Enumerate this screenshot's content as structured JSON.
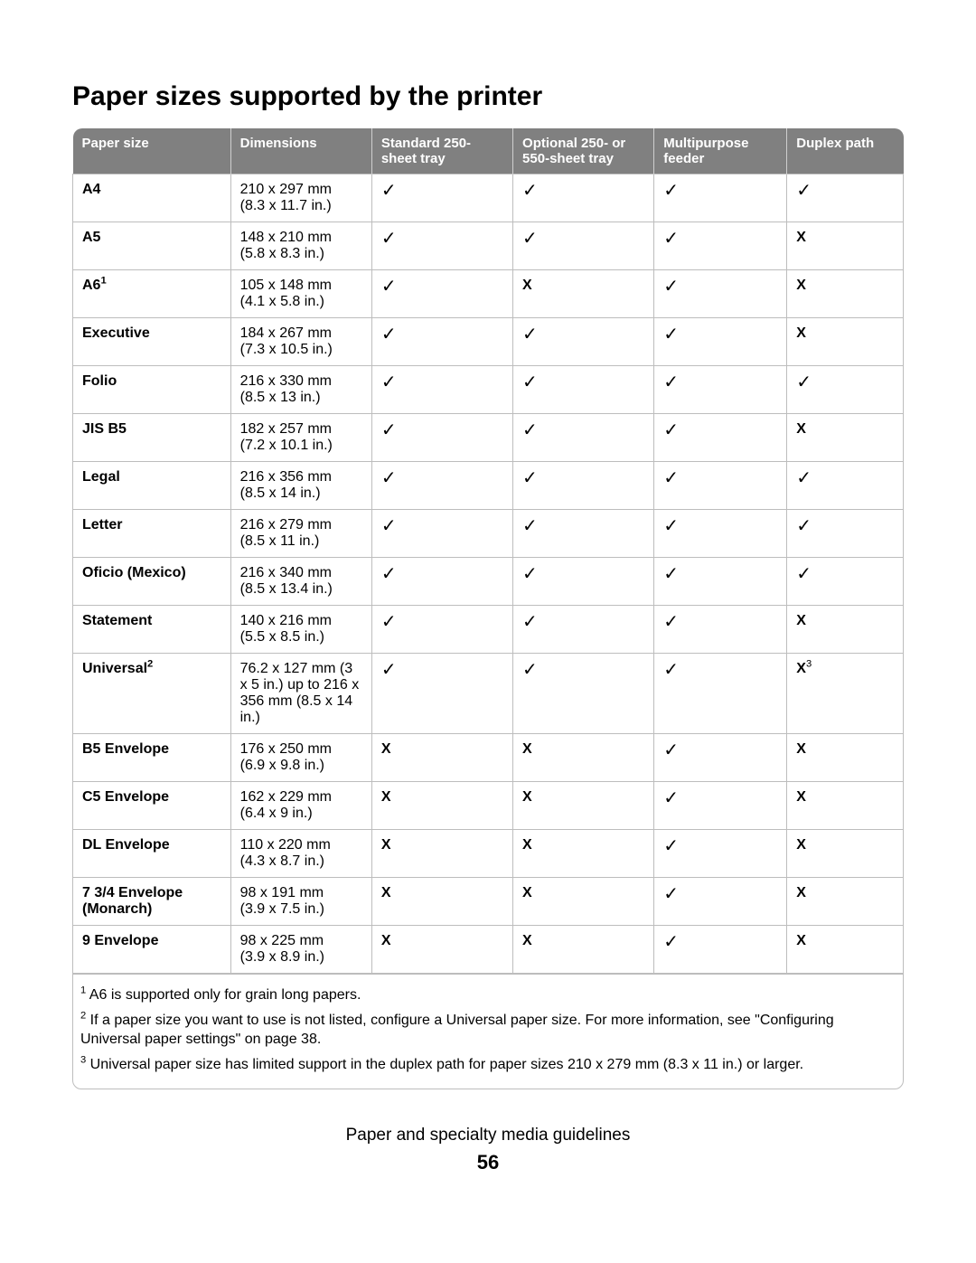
{
  "title": "Paper sizes supported by the printer",
  "columns": {
    "c1": "Paper size",
    "c2": "Dimensions",
    "c3": "Standard 250-sheet tray",
    "c4": "Optional 250- or 550-sheet tray",
    "c5": "Multipurpose feeder",
    "c6": "Duplex path"
  },
  "marks": {
    "yes": "✓",
    "no": "X"
  },
  "rows": [
    {
      "name": "A4",
      "sup": "",
      "mm": "210 x 297 mm",
      "in": "(8.3 x 11.7 in.)",
      "c3": "yes",
      "c4": "yes",
      "c5": "yes",
      "c6": "yes",
      "c6sup": ""
    },
    {
      "name": "A5",
      "sup": "",
      "mm": "148 x 210 mm",
      "in": "(5.8 x 8.3 in.)",
      "c3": "yes",
      "c4": "yes",
      "c5": "yes",
      "c6": "no",
      "c6sup": ""
    },
    {
      "name": "A6",
      "sup": "1",
      "mm": "105 x 148 mm",
      "in": "(4.1 x 5.8 in.)",
      "c3": "yes",
      "c4": "no",
      "c5": "yes",
      "c6": "no",
      "c6sup": ""
    },
    {
      "name": "Executive",
      "sup": "",
      "mm": "184 x 267 mm",
      "in": "(7.3 x 10.5 in.)",
      "c3": "yes",
      "c4": "yes",
      "c5": "yes",
      "c6": "no",
      "c6sup": ""
    },
    {
      "name": "Folio",
      "sup": "",
      "mm": "216 x 330 mm",
      "in": "(8.5 x 13 in.)",
      "c3": "yes",
      "c4": "yes",
      "c5": "yes",
      "c6": "yes",
      "c6sup": ""
    },
    {
      "name": "JIS B5",
      "sup": "",
      "mm": "182 x 257 mm",
      "in": "(7.2 x 10.1 in.)",
      "c3": "yes",
      "c4": "yes",
      "c5": "yes",
      "c6": "no",
      "c6sup": ""
    },
    {
      "name": "Legal",
      "sup": "",
      "mm": "216 x 356 mm",
      "in": "(8.5 x 14 in.)",
      "c3": "yes",
      "c4": "yes",
      "c5": "yes",
      "c6": "yes",
      "c6sup": ""
    },
    {
      "name": "Letter",
      "sup": "",
      "mm": "216 x 279 mm",
      "in": "(8.5 x 11 in.)",
      "c3": "yes",
      "c4": "yes",
      "c5": "yes",
      "c6": "yes",
      "c6sup": ""
    },
    {
      "name": "Oficio (Mexico)",
      "sup": "",
      "mm": "216 x 340 mm",
      "in": "(8.5 x 13.4 in.)",
      "c3": "yes",
      "c4": "yes",
      "c5": "yes",
      "c6": "yes",
      "c6sup": ""
    },
    {
      "name": "Statement",
      "sup": "",
      "mm": "140 x 216 mm",
      "in": "(5.5 x 8.5 in.)",
      "c3": "yes",
      "c4": "yes",
      "c5": "yes",
      "c6": "no",
      "c6sup": ""
    },
    {
      "name": "Universal",
      "sup": "2",
      "mm": "76.2 x 127 mm (3 x 5 in.) up to 216 x 356 mm (8.5 x 14 in.)",
      "in": "",
      "c3": "yes",
      "c4": "yes",
      "c5": "yes",
      "c6": "no",
      "c6sup": "3"
    },
    {
      "name": "B5 Envelope",
      "sup": "",
      "mm": "176 x 250 mm",
      "in": "(6.9 x 9.8 in.)",
      "c3": "no",
      "c4": "no",
      "c5": "yes",
      "c6": "no",
      "c6sup": ""
    },
    {
      "name": "C5 Envelope",
      "sup": "",
      "mm": "162 x 229 mm",
      "in": "(6.4 x 9 in.)",
      "c3": "no",
      "c4": "no",
      "c5": "yes",
      "c6": "no",
      "c6sup": ""
    },
    {
      "name": "DL Envelope",
      "sup": "",
      "mm": "110 x 220 mm",
      "in": "(4.3 x 8.7 in.)",
      "c3": "no",
      "c4": "no",
      "c5": "yes",
      "c6": "no",
      "c6sup": ""
    },
    {
      "name": "7 3/4 Envelope (Monarch)",
      "sup": "",
      "mm": "98 x 191 mm",
      "in": "(3.9 x 7.5 in.)",
      "c3": "no",
      "c4": "no",
      "c5": "yes",
      "c6": "no",
      "c6sup": ""
    },
    {
      "name": "9 Envelope",
      "sup": "",
      "mm": "98 x 225 mm",
      "in": "(3.9 x 8.9 in.)",
      "c3": "no",
      "c4": "no",
      "c5": "yes",
      "c6": "no",
      "c6sup": ""
    }
  ],
  "footnotes": {
    "f1": " A6 is supported only for grain long papers.",
    "f2": " If a paper size you want to use is not listed, configure a Universal paper size. For more information, see \"Configuring Universal paper settings\" on page 38.",
    "f3": " Universal paper size has limited support in the duplex path for paper sizes 210 x 279 mm (8.3 x 11 in.) or larger."
  },
  "footnote_sups": {
    "s1": "1",
    "s2": "2",
    "s3": "3"
  },
  "section_footer": "Paper and specialty media guidelines",
  "page_number": "56"
}
